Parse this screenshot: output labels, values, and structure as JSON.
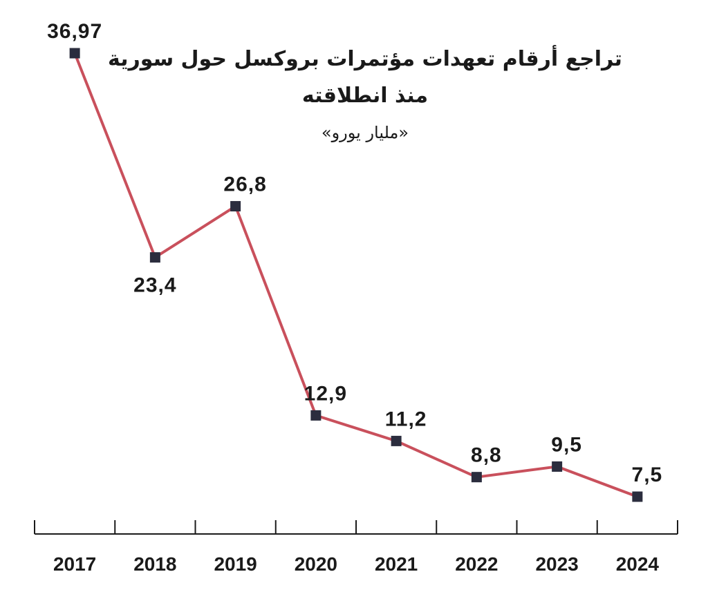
{
  "chart_data": {
    "type": "line",
    "title_line1": "تراجع أرقام تعهدات مؤتمرات بروكسل حول سورية",
    "title_line2": "منذ انطلاقته",
    "subtitle": "«مليار يورو»",
    "categories": [
      "2017",
      "2018",
      "2019",
      "2020",
      "2021",
      "2022",
      "2023",
      "2024"
    ],
    "values": [
      36.97,
      23.4,
      26.8,
      12.9,
      11.2,
      8.8,
      9.5,
      7.5
    ],
    "value_labels": [
      "36,97",
      "23,4",
      "26,8",
      "12,9",
      "11,2",
      "8,8",
      "9,5",
      "7,5"
    ],
    "ylim": [
      7.5,
      36.97
    ],
    "grid": false,
    "line_color": "#c9505c",
    "marker_color": "#2b2d3e",
    "axis_color": "#1a1a1a"
  }
}
